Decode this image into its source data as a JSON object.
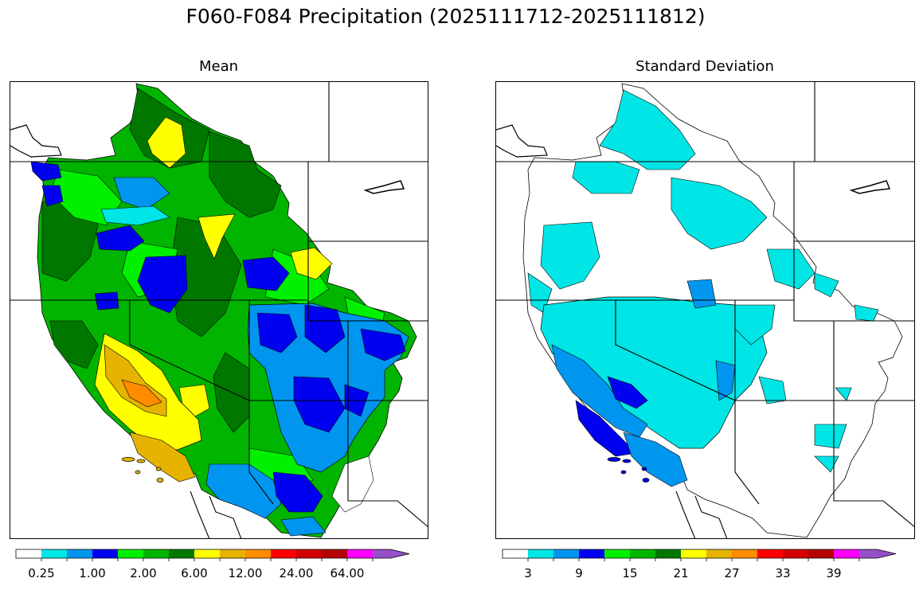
{
  "title": "F060-F084 Precipitation (2025111712-2025111812)",
  "panels": [
    {
      "title": "Mean",
      "colorbar_labels": [
        "0.25",
        "1.00",
        "2.00",
        "6.00",
        "12.00",
        "24.00",
        "64.00"
      ],
      "colorbar_colors": [
        "#ffffff",
        "#00e5e5",
        "#0096f0",
        "#0000f0",
        "#00f000",
        "#00b400",
        "#007800",
        "#ffff00",
        "#e6b400",
        "#ff8c00",
        "#ff0000",
        "#d20000",
        "#b40000",
        "#ff00ff",
        "#9650c8"
      ]
    },
    {
      "title": "Standard Deviation",
      "colorbar_labels": [
        "3",
        "9",
        "15",
        "21",
        "27",
        "33",
        "39"
      ],
      "colorbar_colors": [
        "#ffffff",
        "#00e5e5",
        "#0096f0",
        "#0000f0",
        "#00f000",
        "#00b400",
        "#007800",
        "#ffff00",
        "#e6b400",
        "#ff8c00",
        "#ff0000",
        "#d20000",
        "#b40000",
        "#ff00ff",
        "#9650c8"
      ]
    }
  ]
}
